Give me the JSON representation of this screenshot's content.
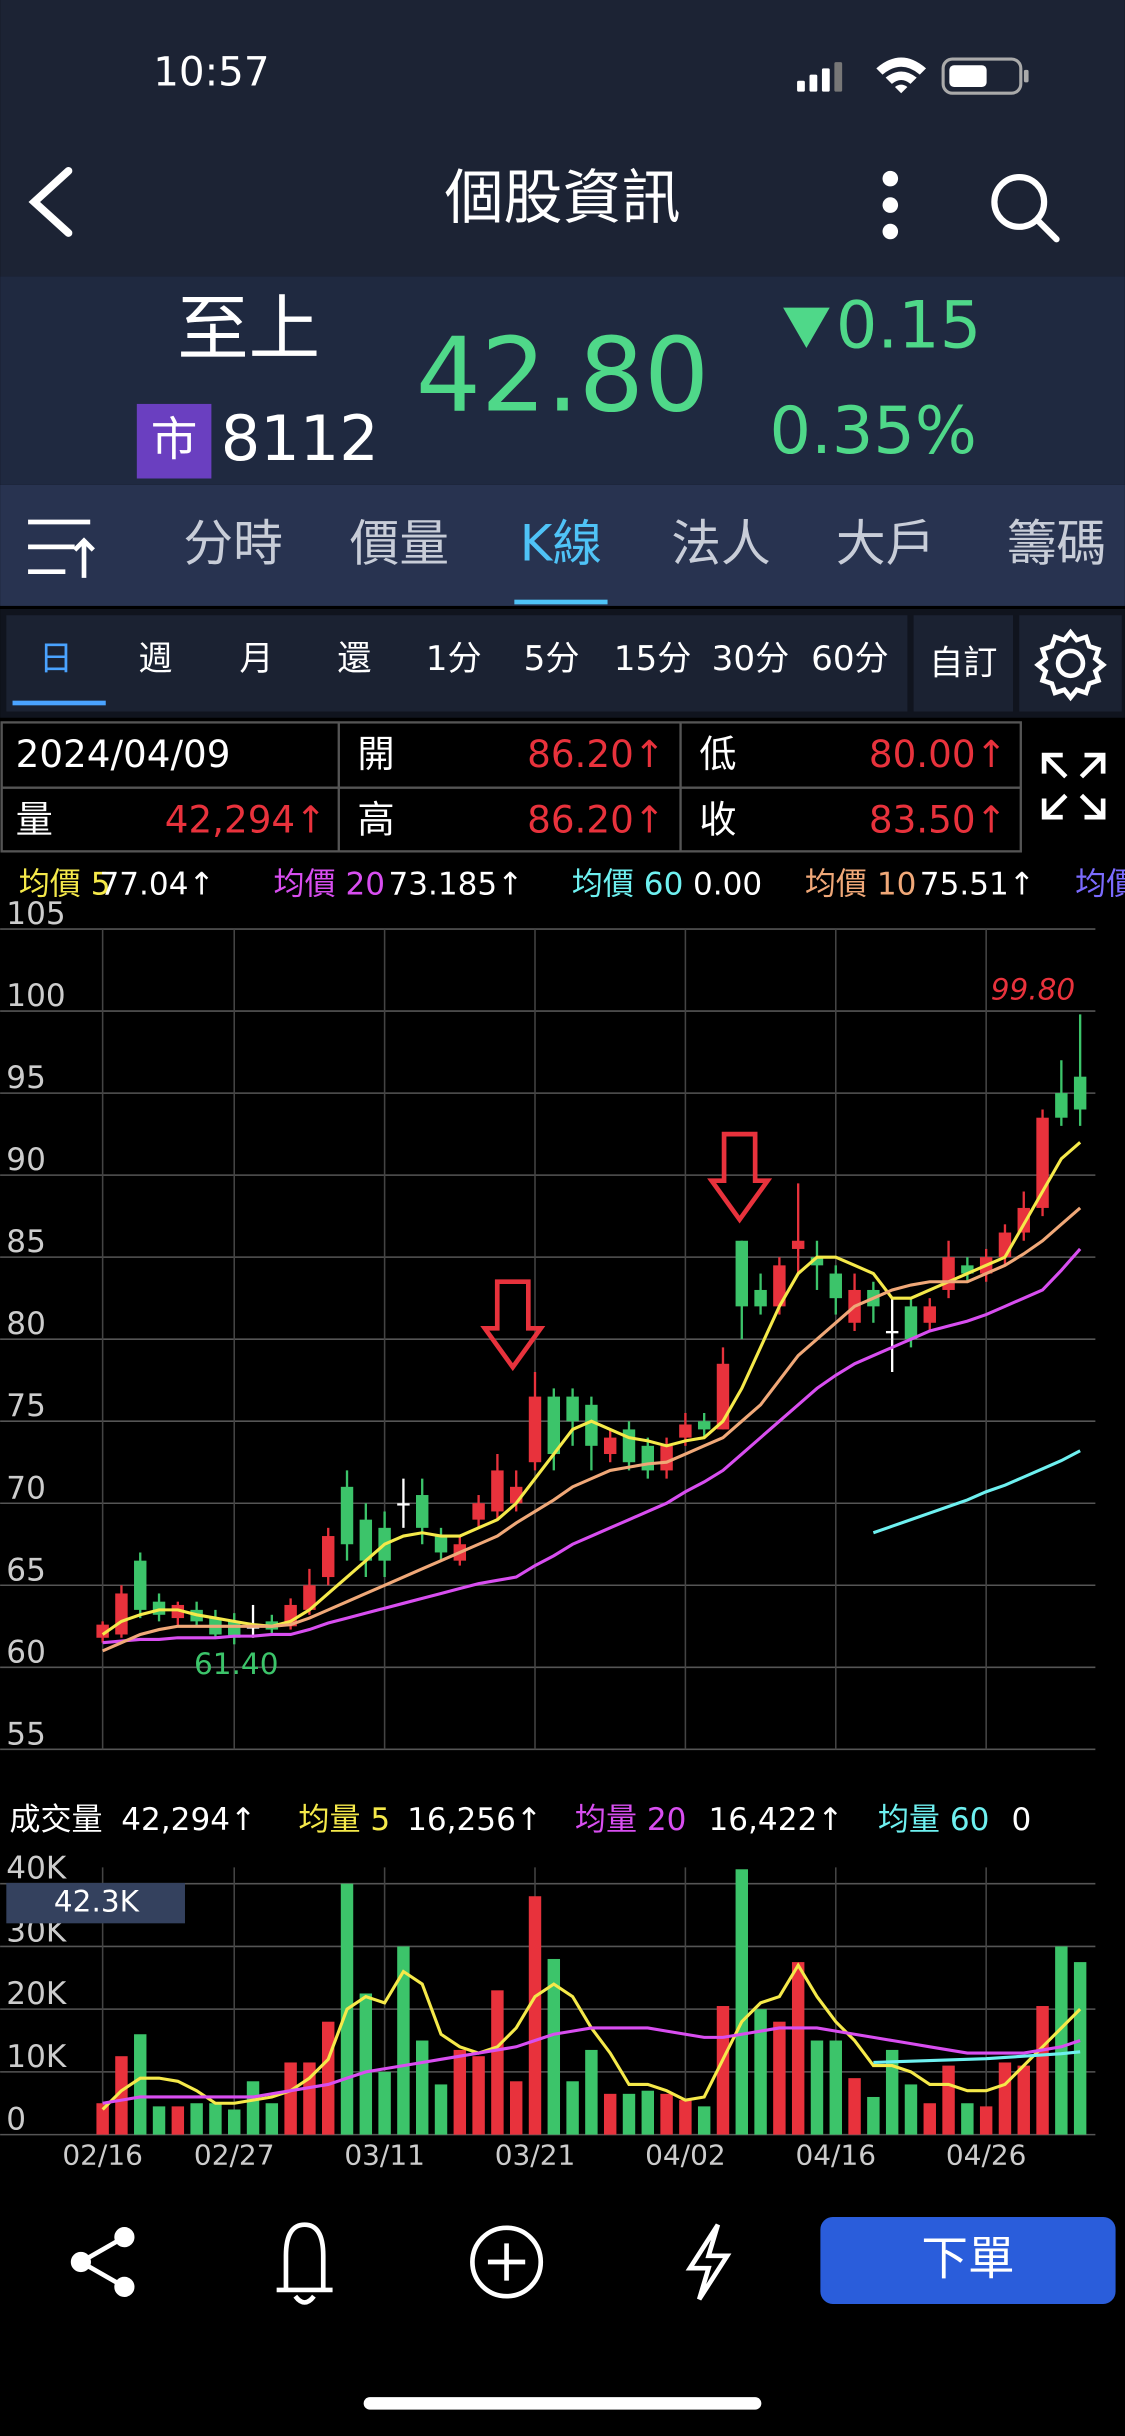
{
  "status_bar": {
    "time": "10:57"
  },
  "nav": {
    "title": "個股資訊"
  },
  "quote": {
    "name": "至上",
    "market": "市",
    "code": "8112",
    "price": "42.80",
    "change": "0.15",
    "change_pct": "0.35%"
  },
  "tabs": {
    "items": [
      "分時",
      "價量",
      "K線",
      "法人",
      "大戶",
      "籌碼"
    ],
    "active": 2
  },
  "periods": {
    "items": [
      "日",
      "週",
      "月",
      "還",
      "1分",
      "5分",
      "15分",
      "30分",
      "60分"
    ],
    "active": 0,
    "custom": "自訂"
  },
  "info": {
    "date": "2024/04/09",
    "volume_label": "量",
    "volume": "42,294↑",
    "fields": [
      {
        "label": "開",
        "value": "86.20↑"
      },
      {
        "label": "低",
        "value": "80.00↑"
      },
      {
        "label": "高",
        "value": "86.20↑"
      },
      {
        "label": "收",
        "value": "83.50↑"
      }
    ]
  },
  "ma_legend_overflow": "均價",
  "order_button": "下單",
  "chart_data": [
    {
      "type": "candlestick",
      "up_color": "#e8323c",
      "down_color": "#3cc46a",
      "flat_color": "#ffffff",
      "categories": [
        "02/16",
        null,
        null,
        null,
        null,
        null,
        null,
        "02/27",
        null,
        null,
        null,
        null,
        null,
        null,
        null,
        "03/11",
        null,
        null,
        null,
        null,
        null,
        null,
        null,
        "03/21",
        null,
        null,
        null,
        null,
        null,
        null,
        null,
        "04/02",
        null,
        null,
        null,
        null,
        null,
        null,
        null,
        "04/16",
        null,
        null,
        null,
        null,
        null,
        null,
        null,
        "04/26",
        null,
        null,
        null,
        null,
        null
      ],
      "open": [
        61.8,
        62,
        66.5,
        64,
        63,
        63.5,
        63,
        62.8,
        62.5,
        62.8,
        62.5,
        63.5,
        65.5,
        71,
        69,
        68.5,
        70,
        70.5,
        68,
        66.5,
        69,
        69.5,
        70,
        72.5,
        76.5,
        76.5,
        76,
        73,
        74.5,
        73.5,
        72,
        74,
        75,
        74.5,
        86,
        83,
        82,
        85.5,
        85,
        84,
        81,
        83,
        80.5,
        82,
        81,
        83,
        84.5,
        84,
        85,
        86.5,
        88,
        95,
        96
      ],
      "high": [
        62.8,
        65,
        67,
        64.5,
        64,
        64,
        63.5,
        63.3,
        63.8,
        63.2,
        64.2,
        66,
        68.5,
        72,
        70,
        69.5,
        71.5,
        71.5,
        68.5,
        68,
        70.5,
        73,
        72,
        78,
        77,
        77,
        76.5,
        74.5,
        75,
        74,
        74,
        75.5,
        75.5,
        79.5,
        86,
        84,
        85,
        89.5,
        86,
        84.5,
        84,
        83.5,
        82.5,
        82.5,
        82.5,
        86,
        85,
        85.5,
        87,
        89,
        94,
        97,
        99.8
      ],
      "low": [
        61.5,
        61.8,
        63,
        62.8,
        62.5,
        62.5,
        61.8,
        61.4,
        61.8,
        62,
        62.3,
        63.2,
        65,
        66.5,
        65.5,
        65.5,
        68.5,
        67.5,
        66.5,
        66.2,
        68.5,
        69,
        69.5,
        72,
        72,
        73.5,
        72,
        72.5,
        72,
        71.5,
        71.5,
        73.5,
        74,
        74.5,
        80,
        81.5,
        81.5,
        84,
        83,
        81.5,
        80.5,
        81,
        78,
        79.5,
        80.5,
        82.5,
        83.5,
        83.5,
        84.5,
        86,
        87.5,
        93,
        93
      ],
      "close": [
        62.6,
        64.5,
        63.5,
        63.2,
        63.8,
        62.8,
        62,
        61.8,
        62.5,
        62.3,
        63.8,
        65,
        68,
        67.5,
        66.5,
        66.5,
        70,
        68.5,
        67,
        67.5,
        70,
        72,
        71,
        76.5,
        73,
        75,
        73.5,
        74,
        72.5,
        72,
        73.5,
        74.8,
        74.5,
        78.5,
        82,
        82,
        84.5,
        86,
        84.5,
        82.5,
        83,
        82,
        80.5,
        80,
        82,
        85,
        84,
        85,
        86.5,
        88,
        93.5,
        93.5,
        94
      ],
      "ylim": [
        55,
        105
      ],
      "yticks": [
        55,
        60,
        65,
        70,
        75,
        80,
        85,
        90,
        95,
        100,
        105
      ],
      "grid": true,
      "series": [
        {
          "name": "均價 5",
          "legend_value": "77.04↑",
          "color": "#f5e94a",
          "values": [
            62,
            62.8,
            63.2,
            63.5,
            63.5,
            63.2,
            63,
            62.8,
            62.6,
            62.5,
            62.8,
            63.5,
            64.5,
            65.5,
            66.5,
            67.5,
            68,
            68.2,
            68,
            68,
            68.5,
            69,
            70,
            71.5,
            73,
            74.5,
            75,
            74.5,
            74,
            73.8,
            73.5,
            73.8,
            74,
            75,
            77,
            79.5,
            82,
            84,
            85,
            85,
            84.5,
            84,
            82.5,
            82.5,
            83,
            83.5,
            84,
            84.5,
            85,
            87,
            89,
            91,
            92
          ]
        },
        {
          "name": "均價 20",
          "legend_value": "73.185↑",
          "color": "#d84ef0",
          "values": [
            61.5,
            61.6,
            61.7,
            61.7,
            61.8,
            61.8,
            61.8,
            61.9,
            61.9,
            62,
            62,
            62.3,
            62.7,
            63,
            63.3,
            63.6,
            63.9,
            64.2,
            64.5,
            64.8,
            65.1,
            65.3,
            65.5,
            66.2,
            66.8,
            67.5,
            68,
            68.5,
            69,
            69.5,
            70,
            70.7,
            71.3,
            72,
            73,
            74,
            75,
            76,
            77,
            77.8,
            78.5,
            79,
            79.5,
            80,
            80.5,
            80.8,
            81.1,
            81.5,
            82,
            82.5,
            83,
            84.2,
            85.5
          ]
        },
        {
          "name": "均價 60",
          "legend_value": "0.00",
          "color": "#6ef0f0",
          "values": [
            null,
            null,
            null,
            null,
            null,
            null,
            null,
            null,
            null,
            null,
            null,
            null,
            null,
            null,
            null,
            null,
            null,
            null,
            null,
            null,
            null,
            null,
            null,
            null,
            null,
            null,
            null,
            null,
            null,
            null,
            null,
            null,
            null,
            null,
            null,
            null,
            null,
            null,
            null,
            null,
            null,
            68.2,
            68.6,
            69,
            69.4,
            69.8,
            70.2,
            70.7,
            71.1,
            71.6,
            72.1,
            72.6,
            73.2
          ]
        },
        {
          "name": "均價 10",
          "legend_value": "75.51↑",
          "color": "#f0a878",
          "values": [
            61,
            61.5,
            62,
            62.3,
            62.5,
            62.5,
            62.5,
            62.5,
            62.5,
            62.5,
            62.6,
            63,
            63.5,
            64,
            64.5,
            65,
            65.5,
            66,
            66.5,
            67,
            67.5,
            68,
            68.8,
            69.5,
            70.2,
            71,
            71.5,
            72,
            72.2,
            72.4,
            72.5,
            73,
            73.5,
            74,
            75,
            76,
            77.5,
            79,
            80,
            81,
            82,
            82.5,
            83,
            83.3,
            83.5,
            83.5,
            83.5,
            84,
            84.5,
            85.2,
            86,
            87,
            88
          ]
        }
      ],
      "annotations": [
        {
          "text": "99.80",
          "color": "#e8323c"
        },
        {
          "text": "61.40",
          "color": "#3cc46a"
        }
      ]
    },
    {
      "type": "bar",
      "value_label": "42.3K",
      "ylim": [
        0,
        42.6
      ],
      "yticks": [
        0,
        {
          "value": 10,
          "label": "10K"
        },
        {
          "value": 20,
          "label": "20K"
        },
        {
          "value": 30,
          "label": "30K"
        },
        {
          "value": 40,
          "label": "40K"
        }
      ],
      "grid": true,
      "series": [
        {
          "name": "成交量",
          "legend_value": "42,294↑",
          "color": "#ffffff",
          "values": [
            5,
            12.5,
            16,
            4.5,
            4.5,
            5,
            5,
            4,
            8.5,
            5,
            11.5,
            11.5,
            18,
            40,
            22.5,
            10,
            30,
            15,
            8,
            13.5,
            12.5,
            23,
            8.5,
            38,
            28,
            8.5,
            13.5,
            6.5,
            6.5,
            7,
            6.5,
            5.5,
            4.5,
            20.5,
            42.3,
            20,
            18,
            27.5,
            15,
            15,
            9,
            6,
            13.5,
            8,
            5,
            11,
            5,
            4.5,
            11.5,
            11,
            20.5,
            30,
            27.5
          ]
        },
        {
          "name": "均量 5",
          "legend_value": "16,256↑",
          "color": "#f5e94a",
          "values": [
            4,
            7,
            9,
            9,
            8.5,
            7,
            5,
            5,
            5.5,
            6,
            7,
            9,
            12,
            20,
            22,
            21,
            26,
            24,
            16,
            14,
            13,
            14,
            17,
            22,
            24,
            22,
            17,
            13,
            8,
            8,
            7,
            5.5,
            6,
            12,
            18,
            21,
            22,
            27,
            22,
            18,
            15,
            11,
            11,
            10,
            8,
            8,
            7,
            7,
            8,
            11,
            14,
            17,
            20
          ]
        },
        {
          "name": "均量 20",
          "legend_value": "16,422↑",
          "color": "#d84ef0",
          "values": [
            5,
            5.5,
            6,
            6,
            6,
            6,
            6,
            6,
            6,
            6.5,
            7,
            7.5,
            8,
            9,
            10,
            10.5,
            11,
            11.5,
            12,
            12.5,
            13,
            13.5,
            14,
            15,
            16,
            16.5,
            17,
            17,
            17,
            17,
            16.5,
            16,
            15.5,
            15.5,
            16,
            16.5,
            17,
            17,
            17,
            16.5,
            16,
            15.5,
            15,
            14.5,
            14,
            13.5,
            13,
            13,
            13,
            13,
            13.5,
            14,
            15
          ]
        },
        {
          "name": "均量 60",
          "legend_value": "0",
          "color": "#6ef0f0",
          "values": [
            null,
            null,
            null,
            null,
            null,
            null,
            null,
            null,
            null,
            null,
            null,
            null,
            null,
            null,
            null,
            null,
            null,
            null,
            null,
            null,
            null,
            null,
            null,
            null,
            null,
            null,
            null,
            null,
            null,
            null,
            null,
            null,
            null,
            null,
            null,
            null,
            null,
            null,
            null,
            null,
            null,
            11.5,
            11.6,
            11.7,
            11.8,
            11.9,
            12,
            12.1,
            12.3,
            12.5,
            12.7,
            12.9,
            13.2
          ]
        }
      ]
    }
  ]
}
